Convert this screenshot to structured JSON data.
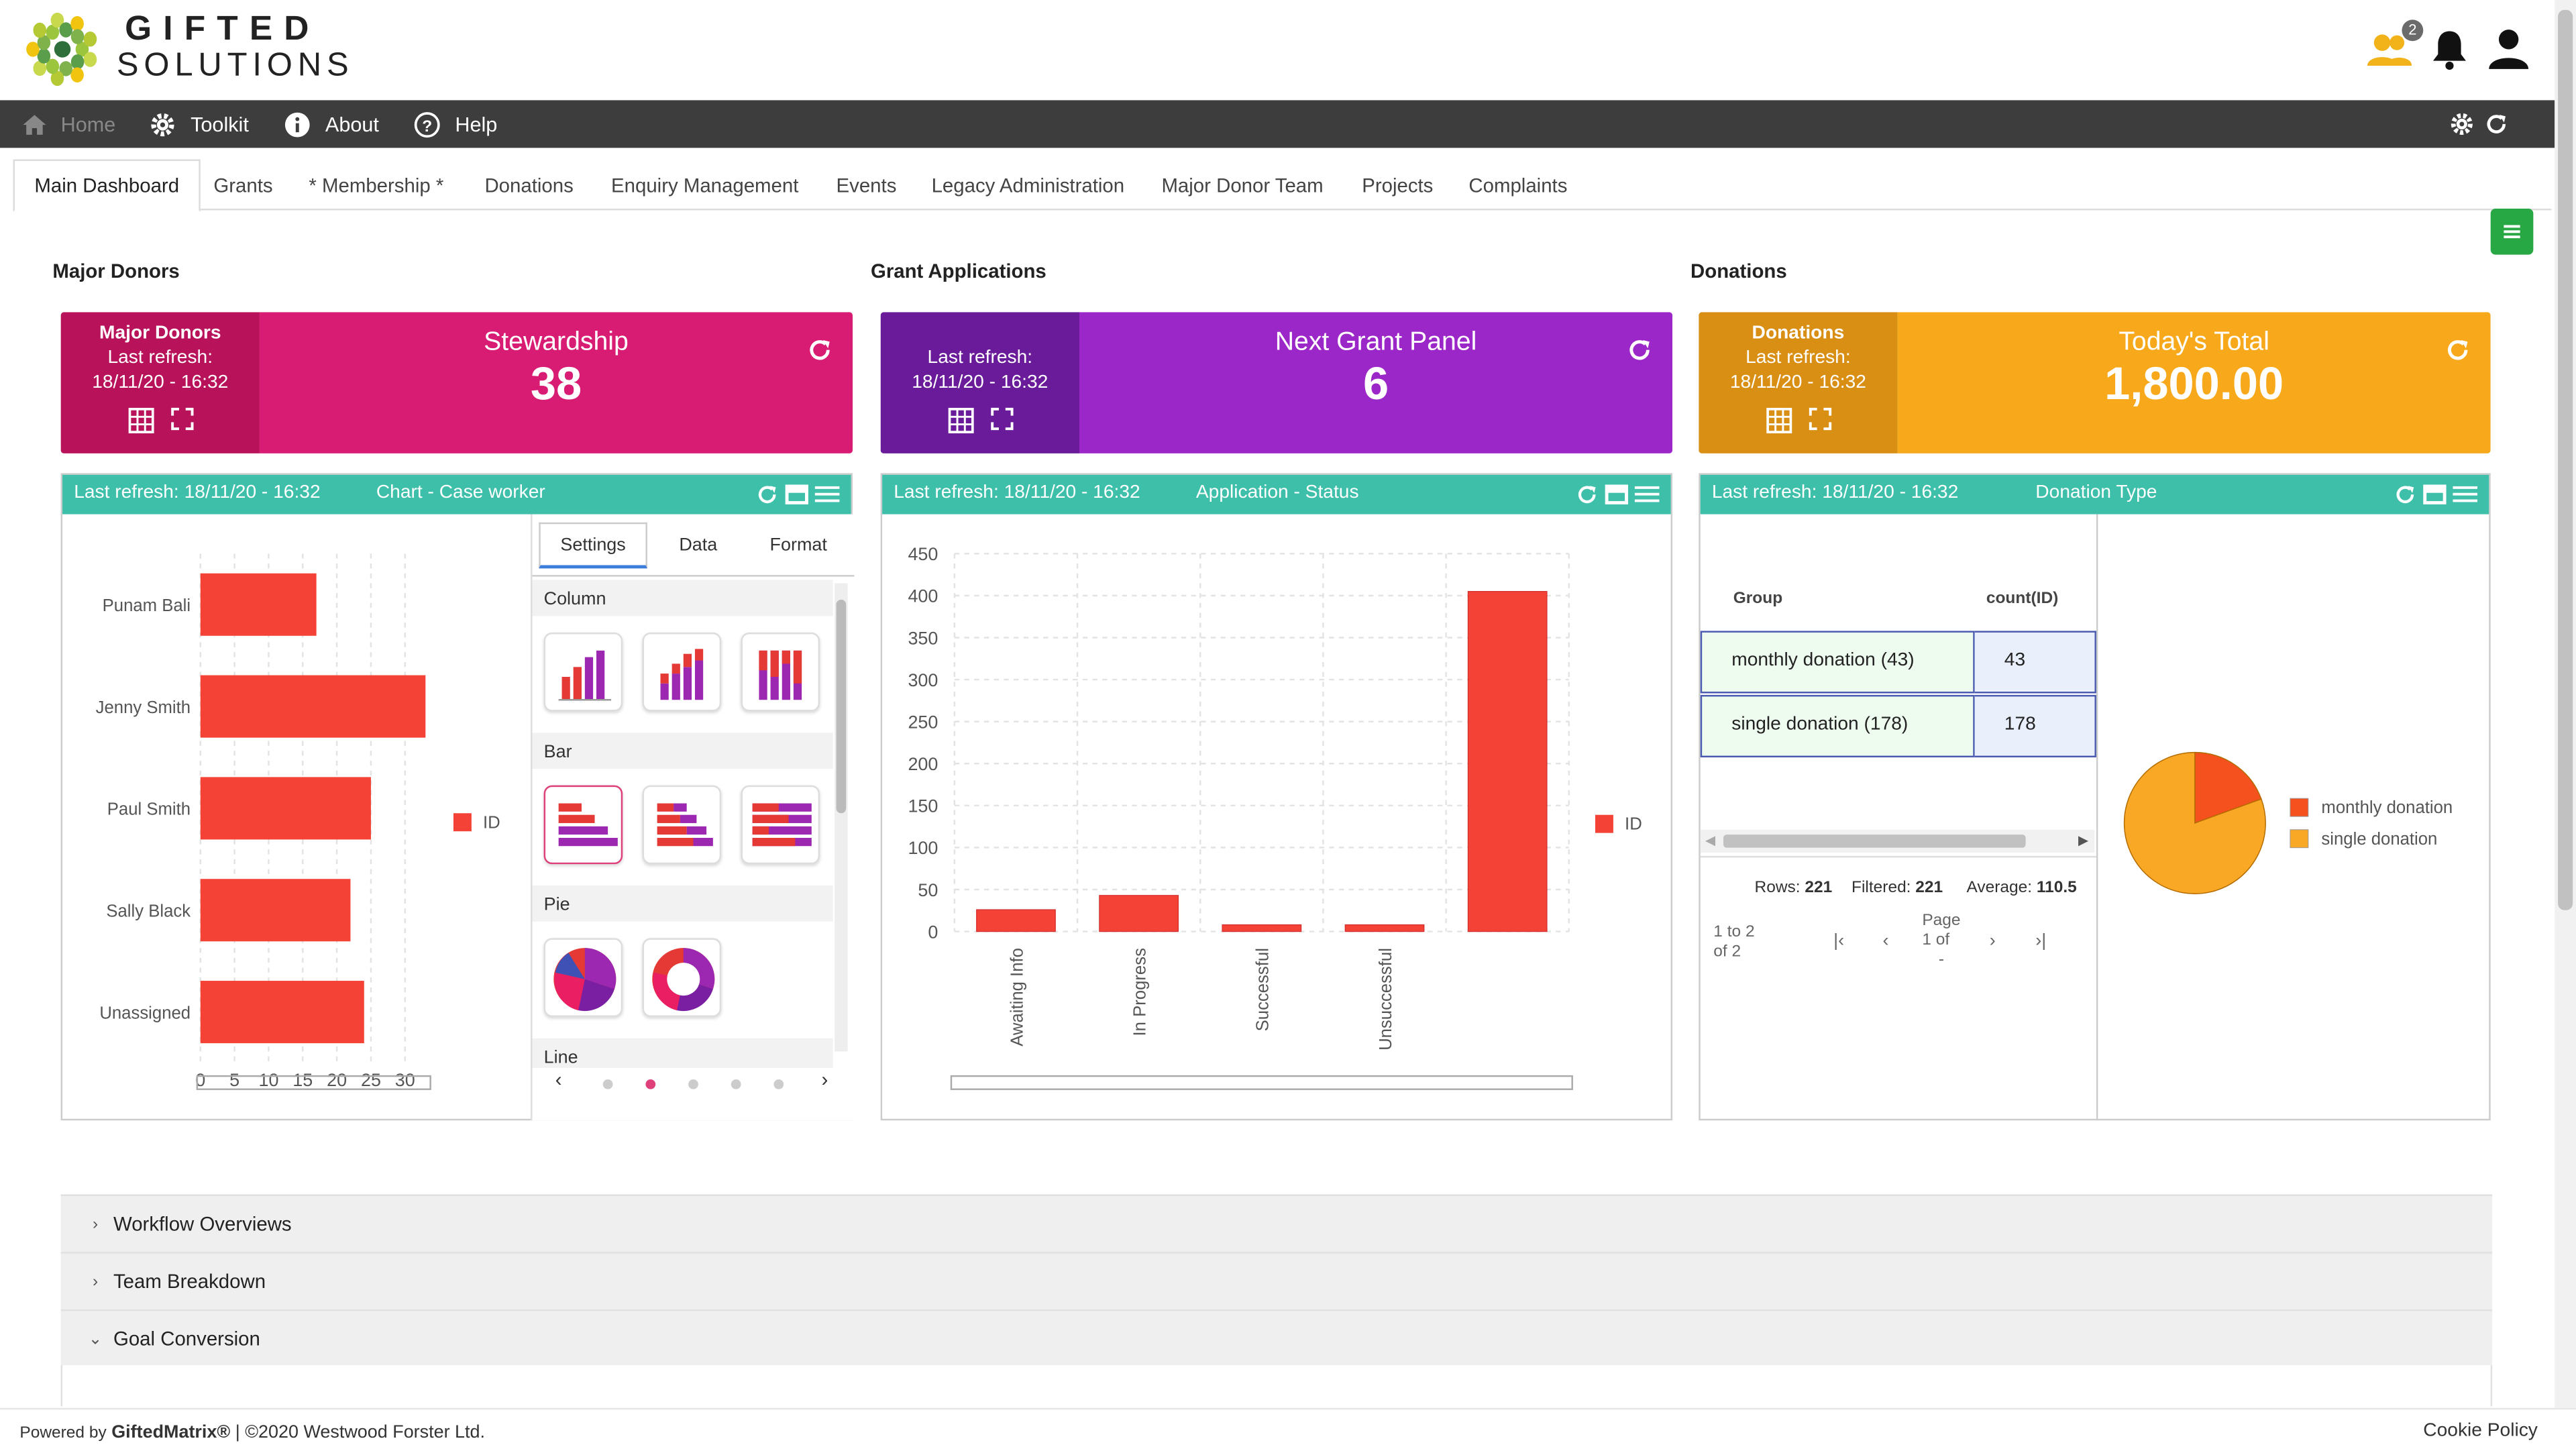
{
  "logo": {
    "line1": "GIFTED",
    "line2": "SOLUTIONS"
  },
  "header": {
    "notification_badge": "2"
  },
  "navbar": {
    "home": "Home",
    "toolkit": "Toolkit",
    "about": "About",
    "help": "Help"
  },
  "tabs": [
    "Main Dashboard",
    "Grants",
    "* Membership *",
    "Donations",
    "Enquiry Management",
    "Events",
    "Legacy Administration",
    "Major Donor Team",
    "Projects",
    "Complaints"
  ],
  "sections": {
    "major_donors": "Major Donors",
    "grant_applications": "Grant Applications",
    "donations": "Donations"
  },
  "kpis": [
    {
      "source": "Major Donors",
      "last_refresh_label": "Last refresh:",
      "last_refresh": "18/11/20 - 16:32",
      "label": "Stewardship",
      "value": "38",
      "color_dark": "#b8135a",
      "color": "#d81b73"
    },
    {
      "source": "",
      "last_refresh_label": "Last refresh:",
      "last_refresh": "18/11/20 - 16:32",
      "label": "Next Grant Panel",
      "value": "6",
      "color_dark": "#6a1b9a",
      "color": "#9c27c8"
    },
    {
      "source": "Donations",
      "last_refresh_label": "Last refresh:",
      "last_refresh": "18/11/20 - 16:32",
      "label": "Today's Total",
      "value": "1,800.00",
      "color_dark": "#d98f14",
      "color": "#f8a91b"
    }
  ],
  "panels": {
    "case_worker": {
      "refresh": "Last refresh: 18/11/20 - 16:32",
      "title": "Chart - Case worker"
    },
    "application_status": {
      "refresh": "Last refresh: 18/11/20 - 16:32",
      "title": "Application - Status"
    },
    "donation_type": {
      "refresh": "Last refresh: 18/11/20 - 16:32",
      "title": "Donation Type"
    }
  },
  "settings_panel": {
    "tabs": [
      "Settings",
      "Data",
      "Format"
    ],
    "groups": [
      "Column",
      "Bar",
      "Pie",
      "Line"
    ],
    "prev": "‹",
    "next": "›"
  },
  "donation_table": {
    "headers": [
      "Group",
      "count(ID)"
    ],
    "rows": [
      {
        "group": "monthly donation (43)",
        "count": "43"
      },
      {
        "group": "single donation (178)",
        "count": "178"
      }
    ],
    "rows_label": "Rows:",
    "rows_value": "221",
    "filtered_label": "Filtered:",
    "filtered_value": "221",
    "average_label": "Average:",
    "average_value": "110.5",
    "range_text": "1 to 2",
    "of_text": "of 2",
    "page_label": "Page",
    "page_of": "1 of",
    "page_trail": "-"
  },
  "accordion": {
    "workflow": "Workflow Overviews",
    "team": "Team Breakdown",
    "goal": "Goal Conversion"
  },
  "footer": {
    "powered_by": "Powered by",
    "brand": "GiftedMatrix®",
    "copyright": " | ©2020 Westwood Forster Ltd.",
    "cookie": "Cookie Policy"
  },
  "chart_data": [
    {
      "type": "bar",
      "orientation": "horizontal",
      "categories": [
        "Punam Bali",
        "Jenny Smith",
        "Paul Smith",
        "Sally Black",
        "Unassigned"
      ],
      "series": [
        {
          "name": "ID",
          "values": [
            17,
            33,
            25,
            22,
            24
          ]
        }
      ],
      "xlim": [
        0,
        33
      ],
      "xticks": [
        0,
        5,
        10,
        15,
        20,
        25,
        30
      ],
      "grid": true,
      "legend": "right",
      "color": "#f44336"
    },
    {
      "type": "bar",
      "categories": [
        "Awaiting Info",
        "In Progress",
        "Successful",
        "Unsuccessful",
        ""
      ],
      "series": [
        {
          "name": "ID",
          "values": [
            26,
            43,
            8,
            8,
            405
          ]
        }
      ],
      "ylim": [
        0,
        450
      ],
      "yticks": [
        0,
        50,
        100,
        150,
        200,
        250,
        300,
        350,
        400,
        450
      ],
      "grid": true,
      "legend": "right",
      "color": "#f44336"
    },
    {
      "type": "pie",
      "labels": [
        "monthly donation",
        "single donation"
      ],
      "values": [
        43,
        178
      ],
      "colors": [
        "#f4511e",
        "#f9a825"
      ],
      "legend": "right"
    }
  ]
}
